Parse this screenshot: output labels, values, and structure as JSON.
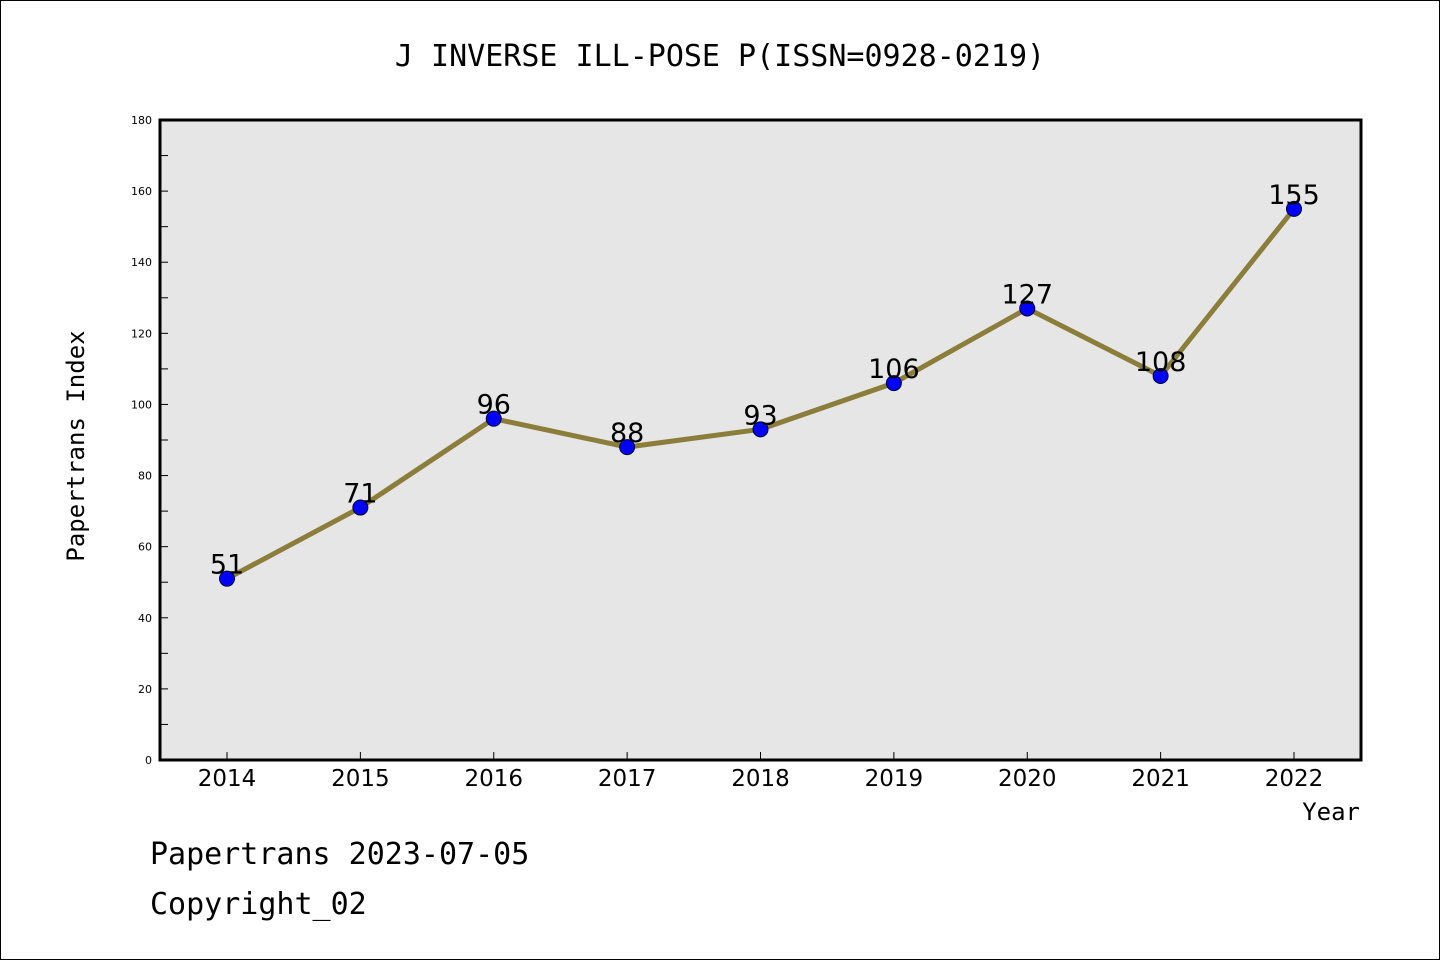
{
  "footer": {
    "line1": "Papertrans 2023-07-05",
    "line2": "Copyright_02"
  },
  "chart_data": {
    "type": "line",
    "title": "J INVERSE ILL-POSE P(ISSN=0928-0219)",
    "xlabel": "Year",
    "ylabel": "Papertrans Index",
    "categories": [
      "2014",
      "2015",
      "2016",
      "2017",
      "2018",
      "2019",
      "2020",
      "2021",
      "2022"
    ],
    "series": [
      {
        "values": [
          51,
          71,
          96,
          88,
          93,
          106,
          127,
          108,
          155
        ]
      }
    ],
    "ylim": [
      0,
      180
    ],
    "yticks": [
      0,
      20,
      40,
      60,
      80,
      100,
      120,
      140,
      160,
      180
    ],
    "grid": false,
    "data_labels": true,
    "colors": {
      "line": "#8b7d3a",
      "marker": "#0000ff",
      "plot_background": "#e6e6e6",
      "text": "#000000"
    }
  }
}
